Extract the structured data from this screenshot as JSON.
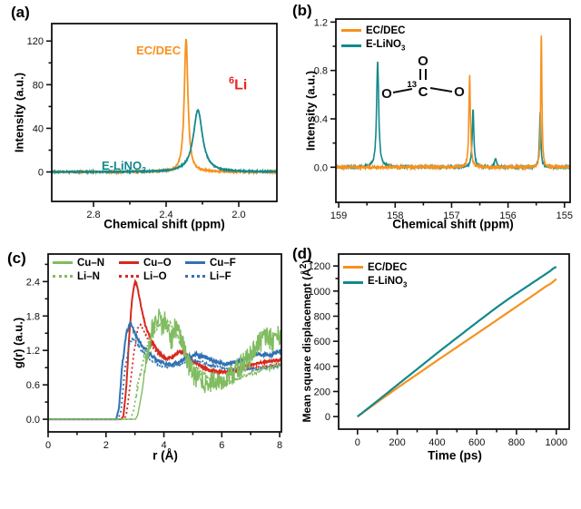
{
  "colors": {
    "orange": "#F6921E",
    "teal": "#12898C",
    "red": "#D62A1E",
    "green": "#80BC60",
    "blue": "#3172B2",
    "annotation_red": "#EA2420",
    "axis": "#111111"
  },
  "chart_data": [
    {
      "id": "a",
      "panel_label": "(a)",
      "type": "line",
      "xlabel": "Chemical shift (ppm)",
      "ylabel": "Intensity (a.u.)",
      "xlim": [
        3.03,
        1.79
      ],
      "ylim": [
        -27,
        136
      ],
      "xticks": [
        2.8,
        2.4,
        2.0
      ],
      "xtick_labels": [
        "2.8",
        "2.4",
        "2.0"
      ],
      "xminor": [
        2.6,
        2.2
      ],
      "yticks": [
        0,
        40,
        80,
        120
      ],
      "ytick_labels": [
        "0",
        "40",
        "80",
        "120"
      ],
      "yminor": [
        20,
        60,
        100
      ],
      "series": [
        {
          "name": "EC/DEC",
          "color": "orange",
          "dash": "solid",
          "kind": "peaks",
          "z": 1,
          "seed": 11,
          "width": 1.8,
          "noise": 0.6,
          "peaks": [
            {
              "c": 2.29,
              "h": 122,
              "w": 0.012
            }
          ]
        },
        {
          "name": "E-LiNO3",
          "color": "teal",
          "dash": "solid",
          "kind": "peaks",
          "z": 2,
          "seed": 12,
          "width": 1.8,
          "noise": 0.5,
          "peaks": [
            {
              "c": 2.225,
              "h": 57,
              "w": 0.03
            }
          ]
        }
      ],
      "annotations": {
        "ecdec": {
          "text": "EC/DEC"
        },
        "elino3": {
          "main": "E-LiNO",
          "sub": "3"
        },
        "li6": {
          "sup": "6",
          "main": "Li"
        }
      }
    },
    {
      "id": "b",
      "panel_label": "(b)",
      "type": "line",
      "xlabel": "Chemical shift (ppm)",
      "ylabel": "Intensity (a.u.)",
      "xlim": [
        159.05,
        154.9
      ],
      "ylim": [
        -0.29,
        1.225
      ],
      "xticks": [
        159,
        158,
        157,
        156,
        155
      ],
      "xtick_labels": [
        "159",
        "158",
        "157",
        "156",
        "155"
      ],
      "xminor": [
        158.5,
        157.5,
        156.5,
        155.5
      ],
      "yticks": [
        0,
        0.4,
        0.8,
        1.2
      ],
      "ytick_labels": [
        "0.0",
        "0.4",
        "0.8",
        "1.2"
      ],
      "yminor": [
        0.2,
        0.6,
        1.0
      ],
      "series": [
        {
          "name": "E-LiNO3",
          "color": "teal",
          "dash": "solid",
          "kind": "peaks",
          "z": 1,
          "seed": 21,
          "width": 1.6,
          "noise": 0.009,
          "peaks": [
            {
              "c": 158.31,
              "h": 0.88,
              "w": 0.022
            },
            {
              "c": 156.62,
              "h": 0.48,
              "w": 0.018
            },
            {
              "c": 156.22,
              "h": 0.07,
              "w": 0.02
            },
            {
              "c": 155.43,
              "h": 0.46,
              "w": 0.014
            }
          ]
        },
        {
          "name": "EC/DEC",
          "color": "orange",
          "dash": "solid",
          "kind": "peaks",
          "z": 2,
          "seed": 22,
          "width": 1.6,
          "noise": 0.013,
          "peaks": [
            {
              "c": 156.68,
              "h": 0.76,
              "w": 0.016
            },
            {
              "c": 155.41,
              "h": 1.12,
              "w": 0.012
            }
          ]
        }
      ],
      "legend": [
        {
          "label": "EC/DEC",
          "color": "orange"
        },
        {
          "main": "E-LiNO",
          "sub": "3",
          "color": "teal"
        }
      ],
      "molecule": {
        "o_top": "O",
        "c_sup": "13",
        "c_main": "C",
        "o_left": "O",
        "o_right": "O"
      }
    },
    {
      "id": "c",
      "panel_label": "(c)",
      "type": "line",
      "xlabel": "r (Å)",
      "ylabel": "g(r) (a.u.)",
      "xlim": [
        0,
        8.06
      ],
      "ylim": [
        -0.22,
        2.88
      ],
      "xticks": [
        0,
        2,
        4,
        6,
        8
      ],
      "xtick_labels": [
        "0",
        "2",
        "4",
        "6",
        "8"
      ],
      "xminor": [
        1,
        3,
        5,
        7
      ],
      "yticks": [
        0,
        0.6,
        1.2,
        1.8,
        2.4
      ],
      "ytick_labels": [
        "0.0",
        "0.6",
        "1.2",
        "1.8",
        "2.4"
      ],
      "yminor": [
        0.3,
        0.9,
        1.5,
        2.1,
        2.7
      ],
      "series": [
        {
          "name": "Cu–N",
          "color": "green",
          "dash": "solid",
          "kind": "pts",
          "z": 6,
          "seed": 36,
          "width": 1.4,
          "noise": 0.2,
          "noise_from": 3.3,
          "noise_min": 0.1,
          "pts": [
            [
              0,
              0
            ],
            [
              3.02,
              0
            ],
            [
              3.1,
              0.08
            ],
            [
              3.25,
              0.5
            ],
            [
              3.4,
              1.05
            ],
            [
              3.6,
              1.55
            ],
            [
              3.8,
              1.85
            ],
            [
              3.95,
              1.6
            ],
            [
              4.1,
              1.75
            ],
            [
              4.25,
              1.35
            ],
            [
              4.4,
              1.6
            ],
            [
              4.55,
              1.45
            ],
            [
              4.7,
              1.25
            ],
            [
              4.85,
              0.95
            ],
            [
              5.0,
              0.8
            ],
            [
              5.2,
              0.7
            ],
            [
              5.45,
              0.62
            ],
            [
              5.7,
              0.68
            ],
            [
              5.95,
              0.62
            ],
            [
              6.2,
              0.75
            ],
            [
              6.5,
              0.85
            ],
            [
              6.8,
              1.0
            ],
            [
              7.1,
              1.2
            ],
            [
              7.35,
              1.35
            ],
            [
              7.6,
              1.45
            ],
            [
              7.8,
              1.35
            ],
            [
              8.06,
              1.5
            ]
          ]
        },
        {
          "name": "Cu–O",
          "color": "red",
          "dash": "solid",
          "kind": "pts",
          "z": 1,
          "seed": 31,
          "width": 2.0,
          "noise": 0.02,
          "noise_from": 2.6,
          "pts": [
            [
              0,
              0
            ],
            [
              2.52,
              0
            ],
            [
              2.6,
              0.05
            ],
            [
              2.7,
              0.55
            ],
            [
              2.8,
              1.45
            ],
            [
              2.9,
              2.1
            ],
            [
              3.0,
              2.4
            ],
            [
              3.08,
              2.32
            ],
            [
              3.2,
              2.0
            ],
            [
              3.35,
              1.65
            ],
            [
              3.55,
              1.38
            ],
            [
              3.8,
              1.18
            ],
            [
              4.05,
              1.06
            ],
            [
              4.3,
              1.08
            ],
            [
              4.55,
              1.19
            ],
            [
              4.75,
              1.15
            ],
            [
              5.0,
              1.02
            ],
            [
              5.3,
              0.92
            ],
            [
              5.6,
              0.85
            ],
            [
              5.9,
              0.82
            ],
            [
              6.2,
              0.83
            ],
            [
              6.6,
              0.88
            ],
            [
              7.0,
              0.95
            ],
            [
              7.5,
              1.0
            ],
            [
              8.06,
              1.04
            ]
          ]
        },
        {
          "name": "Cu–F",
          "color": "blue",
          "dash": "solid",
          "kind": "pts",
          "z": 3,
          "seed": 33,
          "width": 2.0,
          "noise": 0.03,
          "noise_from": 2.5,
          "pts": [
            [
              0,
              0
            ],
            [
              2.35,
              0
            ],
            [
              2.45,
              0.2
            ],
            [
              2.55,
              0.9
            ],
            [
              2.7,
              1.5
            ],
            [
              2.85,
              1.7
            ],
            [
              2.95,
              1.55
            ],
            [
              3.1,
              1.38
            ],
            [
              3.3,
              1.25
            ],
            [
              3.6,
              1.1
            ],
            [
              3.9,
              0.99
            ],
            [
              4.2,
              0.95
            ],
            [
              4.5,
              0.98
            ],
            [
              4.8,
              1.08
            ],
            [
              5.1,
              1.13
            ],
            [
              5.4,
              1.08
            ],
            [
              5.8,
              1.0
            ],
            [
              6.1,
              0.96
            ],
            [
              6.5,
              1.0
            ],
            [
              6.9,
              1.08
            ],
            [
              7.3,
              1.14
            ],
            [
              7.7,
              1.12
            ],
            [
              8.06,
              1.2
            ]
          ]
        },
        {
          "name": "Li–N",
          "color": "green",
          "dash": "dotted",
          "kind": "pts",
          "z": 5,
          "seed": 35,
          "width": 1.8,
          "noise": 0.04,
          "noise_from": 3.0,
          "pts": [
            [
              0,
              0
            ],
            [
              2.85,
              0
            ],
            [
              2.95,
              0.15
            ],
            [
              3.1,
              0.6
            ],
            [
              3.3,
              1.05
            ],
            [
              3.55,
              1.45
            ],
            [
              3.8,
              1.62
            ],
            [
              4.05,
              1.73
            ],
            [
              4.3,
              1.62
            ],
            [
              4.55,
              1.35
            ],
            [
              4.8,
              1.1
            ],
            [
              5.05,
              0.92
            ],
            [
              5.3,
              0.8
            ],
            [
              5.6,
              0.7
            ],
            [
              5.95,
              0.64
            ],
            [
              6.3,
              0.65
            ],
            [
              6.7,
              0.74
            ],
            [
              7.1,
              0.82
            ],
            [
              7.5,
              0.88
            ],
            [
              8.06,
              0.95
            ]
          ]
        },
        {
          "name": "Li–O",
          "color": "red",
          "dash": "dotted",
          "kind": "pts",
          "z": 2,
          "seed": 32,
          "width": 1.8,
          "noise": 0.015,
          "noise_from": 2.7,
          "pts": [
            [
              0,
              0
            ],
            [
              2.6,
              0
            ],
            [
              2.7,
              0.06
            ],
            [
              2.8,
              0.45
            ],
            [
              2.95,
              1.1
            ],
            [
              3.1,
              1.6
            ],
            [
              3.2,
              1.64
            ],
            [
              3.35,
              1.5
            ],
            [
              3.55,
              1.3
            ],
            [
              3.8,
              1.13
            ],
            [
              4.1,
              1.05
            ],
            [
              4.4,
              1.13
            ],
            [
              4.65,
              1.15
            ],
            [
              4.9,
              1.05
            ],
            [
              5.2,
              0.95
            ],
            [
              5.6,
              0.86
            ],
            [
              6.0,
              0.83
            ],
            [
              6.5,
              0.85
            ],
            [
              7.0,
              0.89
            ],
            [
              7.5,
              0.92
            ],
            [
              8.06,
              0.95
            ]
          ]
        },
        {
          "name": "Li–F",
          "color": "blue",
          "dash": "dotted",
          "kind": "pts",
          "z": 4,
          "seed": 34,
          "width": 1.8,
          "noise": 0.02,
          "noise_from": 2.6,
          "pts": [
            [
              0,
              0
            ],
            [
              2.42,
              0
            ],
            [
              2.52,
              0.15
            ],
            [
              2.65,
              0.85
            ],
            [
              2.8,
              1.3
            ],
            [
              2.92,
              1.42
            ],
            [
              3.05,
              1.32
            ],
            [
              3.25,
              1.18
            ],
            [
              3.5,
              1.05
            ],
            [
              3.8,
              0.95
            ],
            [
              4.1,
              0.9
            ],
            [
              4.5,
              0.95
            ],
            [
              4.9,
              1.03
            ],
            [
              5.3,
              1.0
            ],
            [
              5.7,
              0.93
            ],
            [
              6.1,
              0.88
            ],
            [
              6.5,
              0.85
            ],
            [
              7.0,
              0.87
            ],
            [
              7.5,
              0.9
            ],
            [
              8.06,
              0.93
            ]
          ]
        }
      ]
    },
    {
      "id": "d",
      "panel_label": "(d)",
      "type": "line",
      "xlabel": "Time (ps)",
      "ylabel_pre": "Mean square displacement (Å",
      "ylabel_sup": "2",
      "ylabel_post": ")",
      "xlim": [
        -95,
        1065
      ],
      "ylim": [
        -100,
        1295
      ],
      "xticks": [
        0,
        200,
        400,
        600,
        800,
        1000
      ],
      "xtick_labels": [
        "0",
        "200",
        "400",
        "600",
        "800",
        "1000"
      ],
      "xminor": [
        100,
        300,
        500,
        700,
        900
      ],
      "yticks": [
        0,
        200,
        400,
        600,
        800,
        1000,
        1200
      ],
      "ytick_labels": [
        "0",
        "200",
        "400",
        "600",
        "800",
        "1000",
        "1200"
      ],
      "yminor": [
        100,
        300,
        500,
        700,
        900,
        1100
      ],
      "series": [
        {
          "name": "EC/DEC",
          "color": "orange",
          "dash": "solid",
          "kind": "pts",
          "z": 1,
          "seed": 41,
          "width": 2.2,
          "xrange": [
            0,
            1000
          ],
          "pts": [
            [
              0,
              0
            ],
            [
              60,
              70
            ],
            [
              120,
              138
            ],
            [
              200,
              228
            ],
            [
              300,
              337
            ],
            [
              400,
              446
            ],
            [
              500,
              553
            ],
            [
              600,
              660
            ],
            [
              700,
              768
            ],
            [
              800,
              876
            ],
            [
              900,
              984
            ],
            [
              950,
              1040
            ],
            [
              975,
              1062
            ],
            [
              990,
              1082
            ],
            [
              1000,
              1097
            ]
          ]
        },
        {
          "name": "E-LiNO3",
          "color": "teal",
          "dash": "solid",
          "kind": "pts",
          "z": 2,
          "seed": 42,
          "width": 2.2,
          "xrange": [
            0,
            1000
          ],
          "pts": [
            [
              0,
              0
            ],
            [
              60,
              75
            ],
            [
              120,
              150
            ],
            [
              200,
              252
            ],
            [
              300,
              378
            ],
            [
              400,
              505
            ],
            [
              500,
              628
            ],
            [
              600,
              750
            ],
            [
              700,
              870
            ],
            [
              760,
              938
            ],
            [
              820,
              1002
            ],
            [
              880,
              1065
            ],
            [
              930,
              1118
            ],
            [
              965,
              1155
            ],
            [
              985,
              1180
            ],
            [
              1000,
              1193
            ]
          ]
        }
      ],
      "legend": [
        {
          "label": "EC/DEC",
          "color": "orange"
        },
        {
          "main": "E-LiNO",
          "sub": "3",
          "color": "teal"
        }
      ]
    }
  ]
}
